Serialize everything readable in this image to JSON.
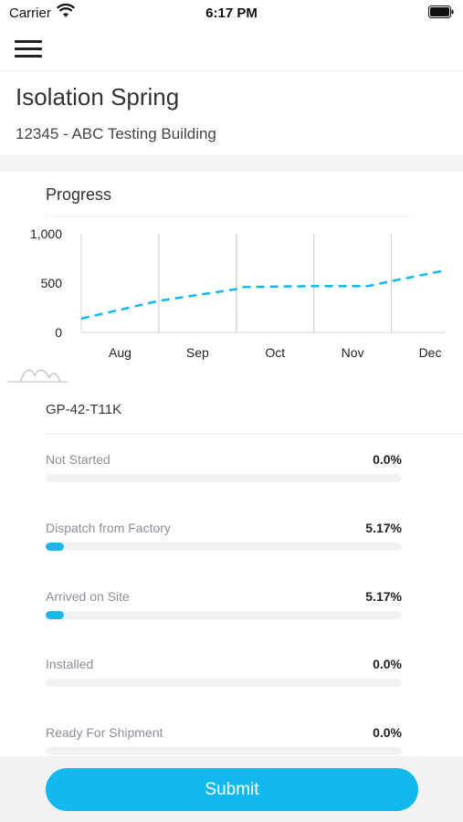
{
  "status_bar": {
    "carrier": "Carrier",
    "time": "6:17 PM"
  },
  "header": {
    "title": "Isolation Spring",
    "subtitle": "12345 - ABC Testing Building"
  },
  "colors": {
    "accent": "#12b9ec",
    "track": "#f1f2f4",
    "label": "#8a8f99",
    "band": "#f3f3f3"
  },
  "icons": {
    "menu": "hamburger-menu-icon",
    "wifi": "wifi-icon",
    "battery": "battery-icon",
    "wave": "wave-icon"
  },
  "chart_data": {
    "type": "line",
    "title": "Progress",
    "x": [
      "Aug",
      "Sep",
      "Oct",
      "Nov",
      "Dec"
    ],
    "x_values": [
      0.0,
      1.0,
      2.0,
      3.0,
      4.0
    ],
    "y_ticks": [
      "0",
      "500",
      "1,000"
    ],
    "ylim": [
      0,
      1000
    ],
    "xlim": [
      -0.5,
      4.2
    ],
    "series": [
      {
        "points": [
          [
            -0.5,
            140
          ],
          [
            0.5,
            320
          ],
          [
            1.5,
            440
          ],
          [
            1.6,
            460
          ],
          [
            2.5,
            470
          ],
          [
            3.2,
            470
          ],
          [
            3.5,
            520
          ],
          [
            4.2,
            630
          ]
        ]
      }
    ],
    "line_style": "dashed",
    "grid": "vertical"
  },
  "item": {
    "code": "GP-42-T11K"
  },
  "statuses": [
    {
      "label": "Not Started",
      "percent": "0.0%",
      "value": 0.0
    },
    {
      "label": "Dispatch from Factory",
      "percent": "5.17%",
      "value": 5.17
    },
    {
      "label": "Arrived on Site",
      "percent": "5.17%",
      "value": 5.17
    },
    {
      "label": "Installed",
      "percent": "0.0%",
      "value": 0.0
    },
    {
      "label": "Ready For Shipment",
      "percent": "0.0%",
      "value": 0.0
    }
  ],
  "actions": {
    "submit_label": "Submit"
  }
}
